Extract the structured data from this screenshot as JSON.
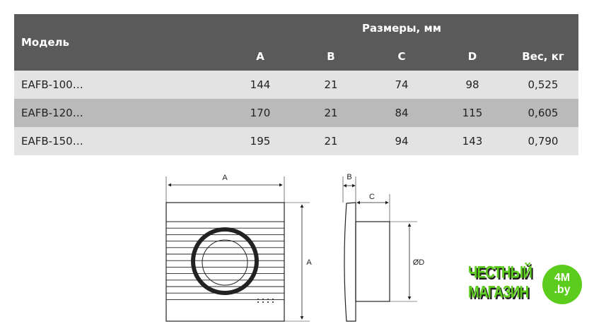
{
  "table": {
    "model_header": "Модель",
    "group_header": "Размеры, мм",
    "columns": [
      "A",
      "B",
      "C",
      "D",
      "Вес, кг"
    ],
    "rows": [
      {
        "model": "EAFB-100…",
        "values": [
          "144",
          "21",
          "74",
          "98",
          "0,525"
        ]
      },
      {
        "model": "EAFB-120…",
        "values": [
          "170",
          "21",
          "84",
          "115",
          "0,605"
        ]
      },
      {
        "model": "EAFB-150…",
        "values": [
          "195",
          "21",
          "94",
          "143",
          "0,790"
        ]
      }
    ]
  },
  "drawing": {
    "label_a": "A",
    "label_b": "B",
    "label_c": "C",
    "label_d": "ØD"
  },
  "logo": {
    "line1": "ЧЕСТНЫЙ",
    "line2": "МАГАЗИН",
    "badge1": "4M",
    "badge2": ".by",
    "color": "#5ccc1c"
  }
}
